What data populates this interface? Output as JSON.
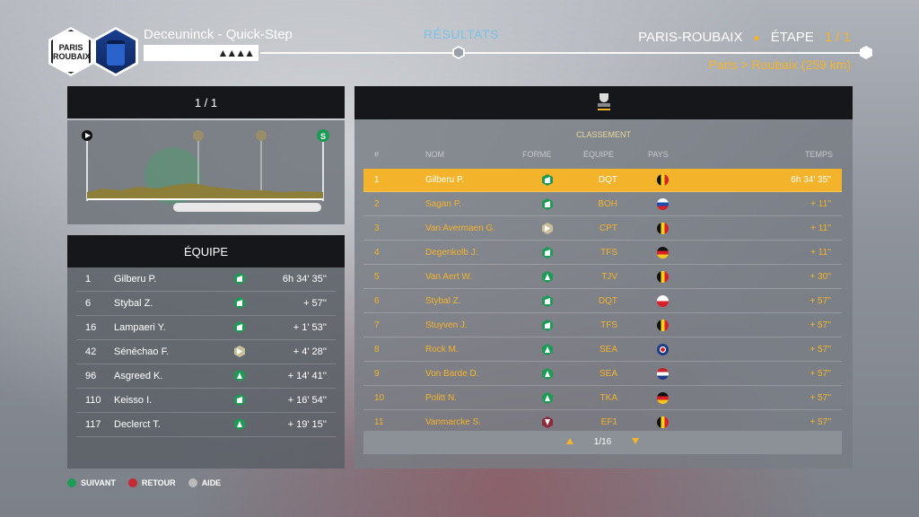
{
  "header": {
    "race_logo": "PARIS ROUBAIX",
    "team_name": "Deceuninck - Quick-Step",
    "center_title": "RÉSULTATS",
    "race_name": "PARIS-ROUBAIX",
    "stage_label": "ÉTAPE",
    "stage_count": "1 / 1",
    "route": "Paris > Roubaix (259 km)"
  },
  "left_panel": {
    "page_indicator": "1 / 1",
    "profile_markers": {
      "finish": "S"
    }
  },
  "team_panel": {
    "title": "ÉQUIPE",
    "rows": [
      {
        "pos": "1",
        "name": "Gilberu P.",
        "form": "g2",
        "time": "6h 34' 35''"
      },
      {
        "pos": "6",
        "name": "Stybal Z.",
        "form": "g2",
        "time": "+ 57''"
      },
      {
        "pos": "16",
        "name": "Lampaeri Y.",
        "form": "g2",
        "time": "+ 1' 53''"
      },
      {
        "pos": "42",
        "name": "Sénéchao F.",
        "form": "t",
        "time": "+ 4' 28''"
      },
      {
        "pos": "96",
        "name": "Asgreed K.",
        "form": "g",
        "time": "+ 14' 41''"
      },
      {
        "pos": "110",
        "name": "Keisso I.",
        "form": "g2",
        "time": "+ 16' 54''"
      },
      {
        "pos": "117",
        "name": "Declerct T.",
        "form": "g",
        "time": "+ 19' 15''"
      }
    ]
  },
  "results": {
    "section_title": "CLASSEMENT",
    "columns": {
      "pos": "#",
      "name": "NOM",
      "form": "FORME",
      "team": "ÉQUIPE",
      "country": "PAYS",
      "time": "TEMPS"
    },
    "rows": [
      {
        "pos": "1",
        "name": "Gilberu P.",
        "form": "g2",
        "team": "DQT",
        "flag": "be",
        "time": "6h 34' 35''"
      },
      {
        "pos": "2",
        "name": "Sagan P.",
        "form": "g2",
        "team": "BOH",
        "flag": "sk",
        "time": "+ 11''"
      },
      {
        "pos": "3",
        "name": "Van Avermaen G.",
        "form": "t",
        "team": "CPT",
        "flag": "be",
        "time": "+ 11''"
      },
      {
        "pos": "4",
        "name": "Degenkolb J.",
        "form": "g2",
        "team": "TFS",
        "flag": "de",
        "time": "+ 11''"
      },
      {
        "pos": "5",
        "name": "Van Aert W.",
        "form": "g",
        "team": "TJV",
        "flag": "be",
        "time": "+ 30''"
      },
      {
        "pos": "6",
        "name": "Stybal Z.",
        "form": "g2",
        "team": "DQT",
        "flag": "cz",
        "time": "+ 57''"
      },
      {
        "pos": "7",
        "name": "Stuyven J.",
        "form": "g2",
        "team": "TFS",
        "flag": "be",
        "time": "+ 57''"
      },
      {
        "pos": "8",
        "name": "Rock M.",
        "form": "g",
        "team": "SEA",
        "flag": "gb",
        "time": "+ 57''"
      },
      {
        "pos": "9",
        "name": "Von Barde D.",
        "form": "g",
        "team": "SEA",
        "flag": "nl",
        "time": "+ 57''"
      },
      {
        "pos": "10",
        "name": "Politt N.",
        "form": "g",
        "team": "TKA",
        "flag": "de",
        "time": "+ 57''"
      },
      {
        "pos": "11",
        "name": "Vanmarcke S.",
        "form": "r",
        "team": "EF1",
        "flag": "be",
        "time": "+ 57''"
      }
    ],
    "pager": "1/16"
  },
  "footer": {
    "next": "SUIVANT",
    "back": "RETOUR",
    "help": "AIDE"
  },
  "colors": {
    "accent": "#f3b32a",
    "title_blue": "#7cc2e8",
    "form_green": "#1c9b55"
  }
}
